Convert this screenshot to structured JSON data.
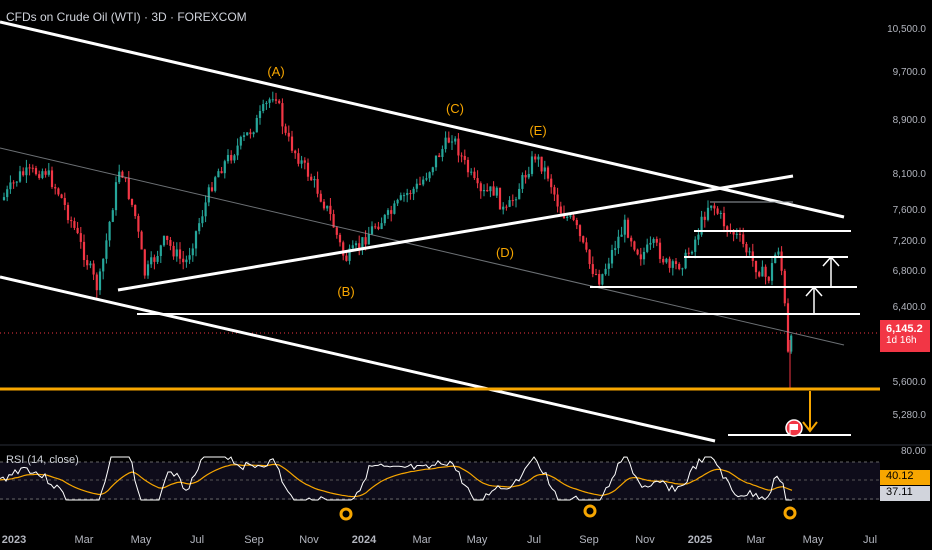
{
  "header": {
    "title": "CFDs on Crude Oil (WTI) · 3D · FOREXCOM"
  },
  "price_axis": {
    "ticks": [
      "10,500.0",
      "9,700.0",
      "8,900.0",
      "8,100.0",
      "7,600.0",
      "7,200.0",
      "6,800.0",
      "6,400.0",
      "5,600.0",
      "5,280.0"
    ],
    "tick_values": [
      10500,
      9700,
      8900,
      8100,
      7600,
      7200,
      6800,
      6400,
      5600,
      5280
    ]
  },
  "current_price": {
    "value": "6,145.2",
    "timer": "1d 16h"
  },
  "rsi": {
    "label": "RSI (14, close)",
    "upper_level": "80.00",
    "values": {
      "ma": "40.12",
      "rsi": "37.11"
    }
  },
  "time_axis": {
    "labels": [
      "2023",
      "Mar",
      "May",
      "Jul",
      "Sep",
      "Nov",
      "2024",
      "Mar",
      "May",
      "Jul",
      "Sep",
      "Nov",
      "2025",
      "Mar",
      "May",
      "Jul"
    ]
  },
  "wave_labels": [
    "(A)",
    "(B)",
    "(C)",
    "(D)",
    "(E)"
  ],
  "colors": {
    "up": "#26a69a",
    "down": "#f23645",
    "orange": "#f7a600",
    "line": "#ffffff",
    "rsi_line": "#ffffff",
    "rsi_ma": "#f7a600"
  }
}
